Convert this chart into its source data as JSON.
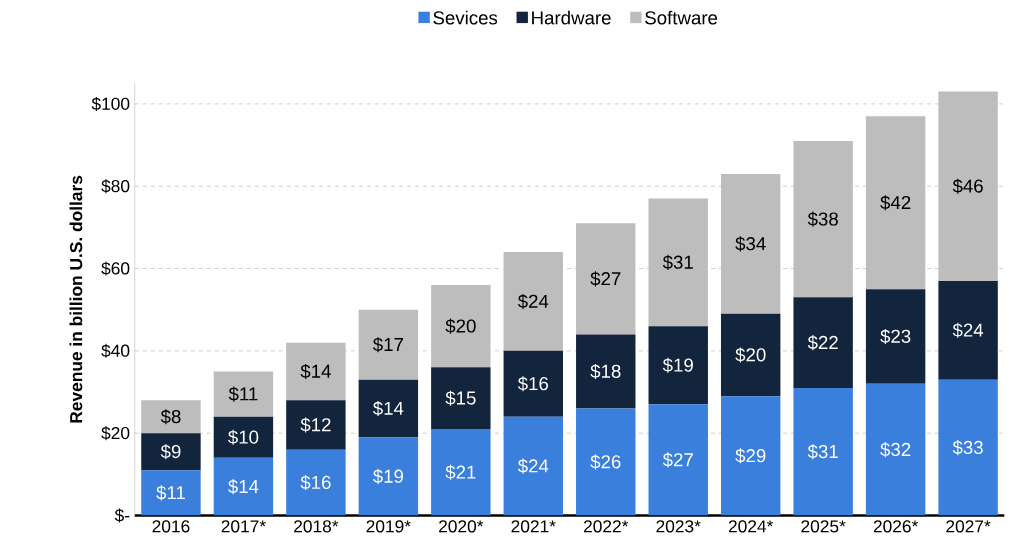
{
  "chart_data": {
    "type": "bar",
    "stacked": true,
    "ylabel": "Revenue in billion U.S. dollars",
    "categories": [
      "2016",
      "2017*",
      "2018*",
      "2019*",
      "2020*",
      "2021*",
      "2022*",
      "2023*",
      "2024*",
      "2025*",
      "2026*",
      "2027*"
    ],
    "series": [
      {
        "name": "Sevices",
        "color": "#3a7fdc",
        "values": [
          11,
          14,
          16,
          19,
          21,
          24,
          26,
          27,
          29,
          31,
          32,
          33
        ],
        "value_labels": [
          "$11",
          "$14",
          "$16",
          "$19",
          "$21",
          "$24",
          "$26",
          "$27",
          "$29",
          "$31",
          "$32",
          "$33"
        ]
      },
      {
        "name": "Hardware",
        "color": "#13253d",
        "values": [
          9,
          10,
          12,
          14,
          15,
          16,
          18,
          19,
          20,
          22,
          23,
          24
        ],
        "value_labels": [
          "$9",
          "$10",
          "$12",
          "$14",
          "$15",
          "$16",
          "$18",
          "$19",
          "$20",
          "$22",
          "$23",
          "$24"
        ]
      },
      {
        "name": "Software",
        "color": "#bdbdbd",
        "values": [
          8,
          11,
          14,
          17,
          20,
          24,
          27,
          31,
          34,
          38,
          42,
          46
        ],
        "value_labels": [
          "$8",
          "$11",
          "$14",
          "$17",
          "$20",
          "$24",
          "$27",
          "$31",
          "$34",
          "$38",
          "$42",
          "$46"
        ]
      }
    ],
    "ylim": [
      0,
      105
    ],
    "yticks": [
      {
        "value": 0,
        "label": "$-"
      },
      {
        "value": 20,
        "label": "$20"
      },
      {
        "value": 40,
        "label": "$40"
      },
      {
        "value": 60,
        "label": "$60"
      },
      {
        "value": 80,
        "label": "$80"
      },
      {
        "value": 100,
        "label": "$100"
      }
    ],
    "grid": "y",
    "legend": "top"
  }
}
